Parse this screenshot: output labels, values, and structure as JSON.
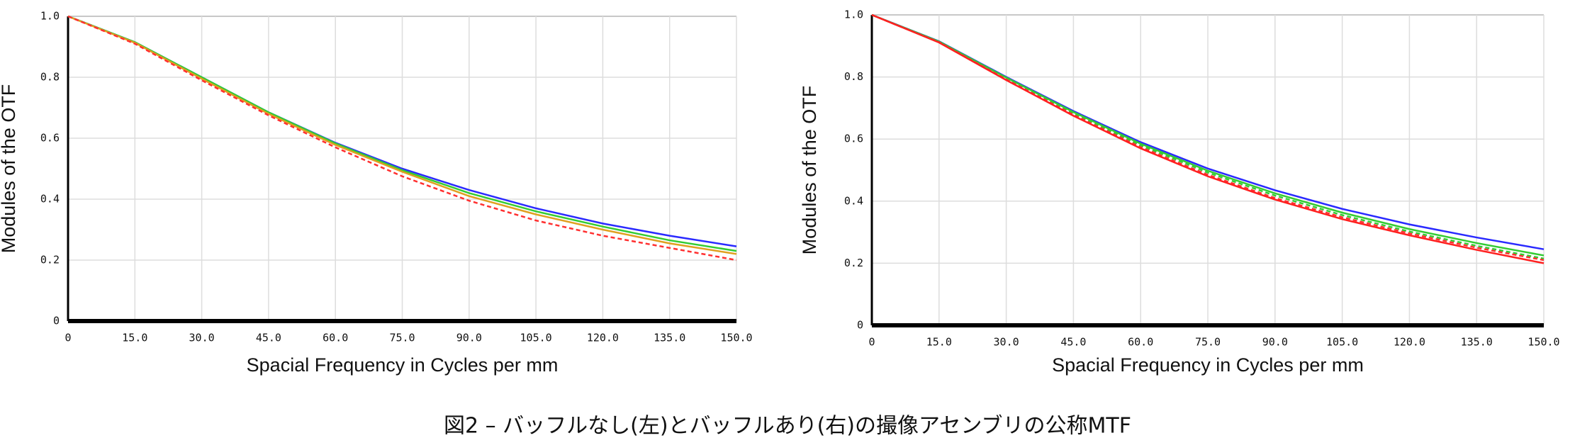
{
  "chart_data": [
    {
      "type": "line",
      "xlabel": "Spacial Frequency in Cycles per mm",
      "ylabel": "Modules of the OTF",
      "x": [
        0,
        15,
        30,
        45,
        60,
        75,
        90,
        105,
        120,
        135,
        150
      ],
      "series": [
        {
          "color": "#2a2aff",
          "dashed": false,
          "values": [
            1,
            0.915,
            0.8,
            0.685,
            0.585,
            0.5,
            0.43,
            0.37,
            0.32,
            0.28,
            0.245
          ]
        },
        {
          "color": "#33cc33",
          "dashed": false,
          "values": [
            1,
            0.915,
            0.8,
            0.685,
            0.583,
            0.495,
            0.42,
            0.36,
            0.31,
            0.265,
            0.23
          ]
        },
        {
          "color": "#e0a020",
          "dashed": false,
          "values": [
            1,
            0.913,
            0.795,
            0.68,
            0.578,
            0.49,
            0.41,
            0.35,
            0.3,
            0.255,
            0.22
          ]
        },
        {
          "color": "#ff3030",
          "dashed": true,
          "values": [
            1,
            0.91,
            0.79,
            0.675,
            0.57,
            0.475,
            0.395,
            0.33,
            0.28,
            0.24,
            0.2
          ]
        }
      ],
      "xlim": [
        0,
        150
      ],
      "ylim": [
        0,
        1
      ],
      "grid": true,
      "xticks": [
        0,
        {
          "value": 15,
          "label": "15.0"
        },
        {
          "value": 30,
          "label": "30.0"
        },
        {
          "value": 45,
          "label": "45.0"
        },
        {
          "value": 60,
          "label": "60.0"
        },
        {
          "value": 75,
          "label": "75.0"
        },
        {
          "value": 90,
          "label": "90.0"
        },
        {
          "value": 105,
          "label": "105.0"
        },
        {
          "value": 120,
          "label": "120.0"
        },
        {
          "value": 135,
          "label": "135.0"
        },
        {
          "value": 150,
          "label": "150.0"
        }
      ],
      "yticks": [
        0,
        0.2,
        0.4,
        0.6,
        0.8,
        {
          "value": 1,
          "label": "1.0"
        }
      ]
    },
    {
      "type": "line",
      "xlabel": "Spacial Frequency in Cycles per mm",
      "ylabel": "Modules of the OTF",
      "x": [
        0,
        15,
        30,
        45,
        60,
        75,
        90,
        105,
        120,
        135,
        150
      ],
      "series": [
        {
          "color": "#2a2aff",
          "dashed": false,
          "values": [
            1,
            0.915,
            0.8,
            0.69,
            0.59,
            0.505,
            0.435,
            0.375,
            0.325,
            0.283,
            0.245
          ]
        },
        {
          "color": "#33cc33",
          "dashed": false,
          "values": [
            1,
            0.914,
            0.798,
            0.687,
            0.585,
            0.498,
            0.425,
            0.363,
            0.31,
            0.265,
            0.225
          ]
        },
        {
          "color": "#33cc33",
          "dashed": true,
          "values": [
            1,
            0.913,
            0.795,
            0.683,
            0.58,
            0.492,
            0.418,
            0.355,
            0.302,
            0.256,
            0.215
          ]
        },
        {
          "color": "#ff3030",
          "dashed": true,
          "values": [
            1,
            0.912,
            0.792,
            0.678,
            0.574,
            0.485,
            0.41,
            0.348,
            0.296,
            0.25,
            0.21
          ]
        },
        {
          "color": "#ff2020",
          "dashed": false,
          "values": [
            1,
            0.911,
            0.79,
            0.675,
            0.57,
            0.48,
            0.405,
            0.342,
            0.29,
            0.243,
            0.2
          ]
        }
      ],
      "xlim": [
        0,
        150
      ],
      "ylim": [
        0,
        1
      ],
      "grid": true,
      "xticks": [
        0,
        {
          "value": 15,
          "label": "15.0"
        },
        {
          "value": 30,
          "label": "30.0"
        },
        {
          "value": 45,
          "label": "45.0"
        },
        {
          "value": 60,
          "label": "60.0"
        },
        {
          "value": 75,
          "label": "75.0"
        },
        {
          "value": 90,
          "label": "90.0"
        },
        {
          "value": 105,
          "label": "105.0"
        },
        {
          "value": 120,
          "label": "120.0"
        },
        {
          "value": 135,
          "label": "135.0"
        },
        {
          "value": 150,
          "label": "150.0"
        }
      ],
      "yticks": [
        0,
        0.2,
        0.4,
        0.6,
        0.8,
        {
          "value": 1,
          "label": "1.0"
        }
      ]
    }
  ],
  "caption": "図2 – バッフルなし(左)とバッフルあり(右)の撮像アセンブリの公称MTF"
}
